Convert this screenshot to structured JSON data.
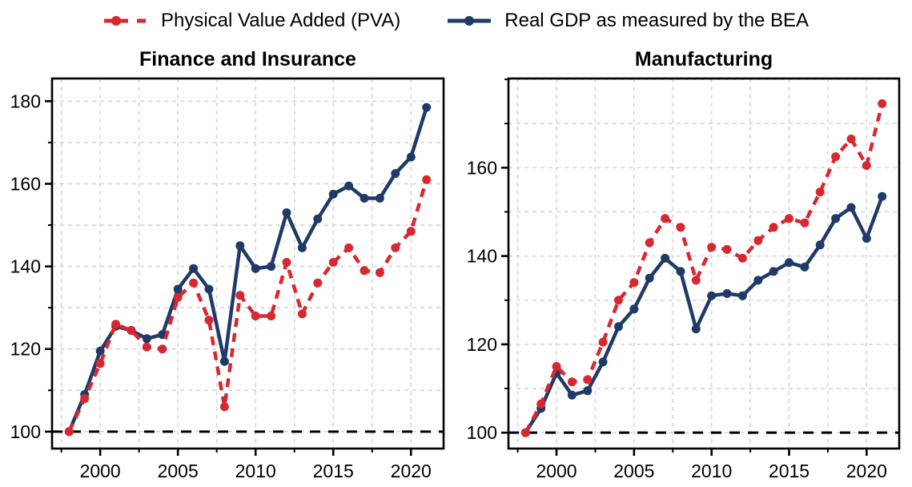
{
  "figure": {
    "legend": [
      {
        "id": "pva",
        "label": "Physical Value Added (PVA)",
        "color": "#d7282f",
        "style": "dashed"
      },
      {
        "id": "bea",
        "label": "Real GDP as measured by the BEA",
        "color": "#1f3a68",
        "style": "solid"
      }
    ],
    "colors": {
      "pva": "#d7282f",
      "bea": "#1f3a68",
      "grid": "#d6d6d6",
      "axis": "#000000",
      "baseline": "#000000",
      "text": "#000000"
    }
  },
  "chart_data": [
    {
      "type": "line",
      "title": "Finance and Insurance",
      "x": [
        1998,
        1999,
        2000,
        2001,
        2002,
        2003,
        2004,
        2005,
        2006,
        2007,
        2008,
        2009,
        2010,
        2011,
        2012,
        2013,
        2014,
        2015,
        2016,
        2017,
        2018,
        2019,
        2020,
        2021
      ],
      "series": [
        {
          "name": "Physical Value Added (PVA)",
          "values": [
            100,
            108,
            116.5,
            126,
            124.5,
            120.5,
            120,
            132.5,
            136,
            127,
            106,
            133,
            128,
            128,
            141,
            128.5,
            136,
            141,
            144.5,
            139,
            138.5,
            144.5,
            148.5,
            161
          ]
        },
        {
          "name": "Real GDP as measured by the BEA",
          "values": [
            100,
            109,
            119.5,
            125.5,
            124.5,
            122.5,
            123.5,
            134.5,
            139.5,
            134.5,
            117,
            145,
            139.5,
            140,
            153,
            144.5,
            151.5,
            157.5,
            159.5,
            156.5,
            156.5,
            162.5,
            166.5,
            178.5
          ]
        }
      ],
      "xlim": [
        1996.9,
        2022.1
      ],
      "ylim": [
        95.9,
        185.5
      ],
      "xticks": [
        2000,
        2005,
        2010,
        2015,
        2020
      ],
      "yticks": [
        100,
        120,
        140,
        160,
        180
      ],
      "minor_y_step": 10,
      "minor_x_step": 2.5,
      "baseline": 100,
      "grid": true,
      "legend_position": "top-center-above-figure"
    },
    {
      "type": "line",
      "title": "Manufacturing",
      "x": [
        1998,
        1999,
        2000,
        2001,
        2002,
        2003,
        2004,
        2005,
        2006,
        2007,
        2008,
        2009,
        2010,
        2011,
        2012,
        2013,
        2014,
        2015,
        2016,
        2017,
        2018,
        2019,
        2020,
        2021
      ],
      "series": [
        {
          "name": "Physical Value Added (PVA)",
          "values": [
            100,
            106.5,
            115,
            111.5,
            112,
            120.5,
            130,
            134,
            143,
            148.5,
            146.5,
            134.5,
            142,
            141.5,
            139.5,
            143.5,
            146.5,
            148.5,
            147.5,
            154.5,
            162.5,
            166.5,
            160.5,
            174.5
          ]
        },
        {
          "name": "Real GDP as measured by the BEA",
          "values": [
            100,
            105.5,
            113.5,
            108.5,
            109.5,
            116,
            124,
            128,
            135,
            139.5,
            136.5,
            123.5,
            131,
            131.5,
            131,
            134.5,
            136.5,
            138.5,
            137.5,
            142.5,
            148.5,
            151,
            144,
            153.5
          ]
        }
      ],
      "xlim": [
        1996.9,
        2022.1
      ],
      "ylim": [
        96.4,
        180.2
      ],
      "xticks": [
        2000,
        2005,
        2010,
        2015,
        2020
      ],
      "yticks": [
        100,
        120,
        140,
        160
      ],
      "minor_y_step": 10,
      "minor_x_step": 2.5,
      "baseline": 100,
      "grid": true,
      "legend_position": "top-center-above-figure"
    }
  ]
}
